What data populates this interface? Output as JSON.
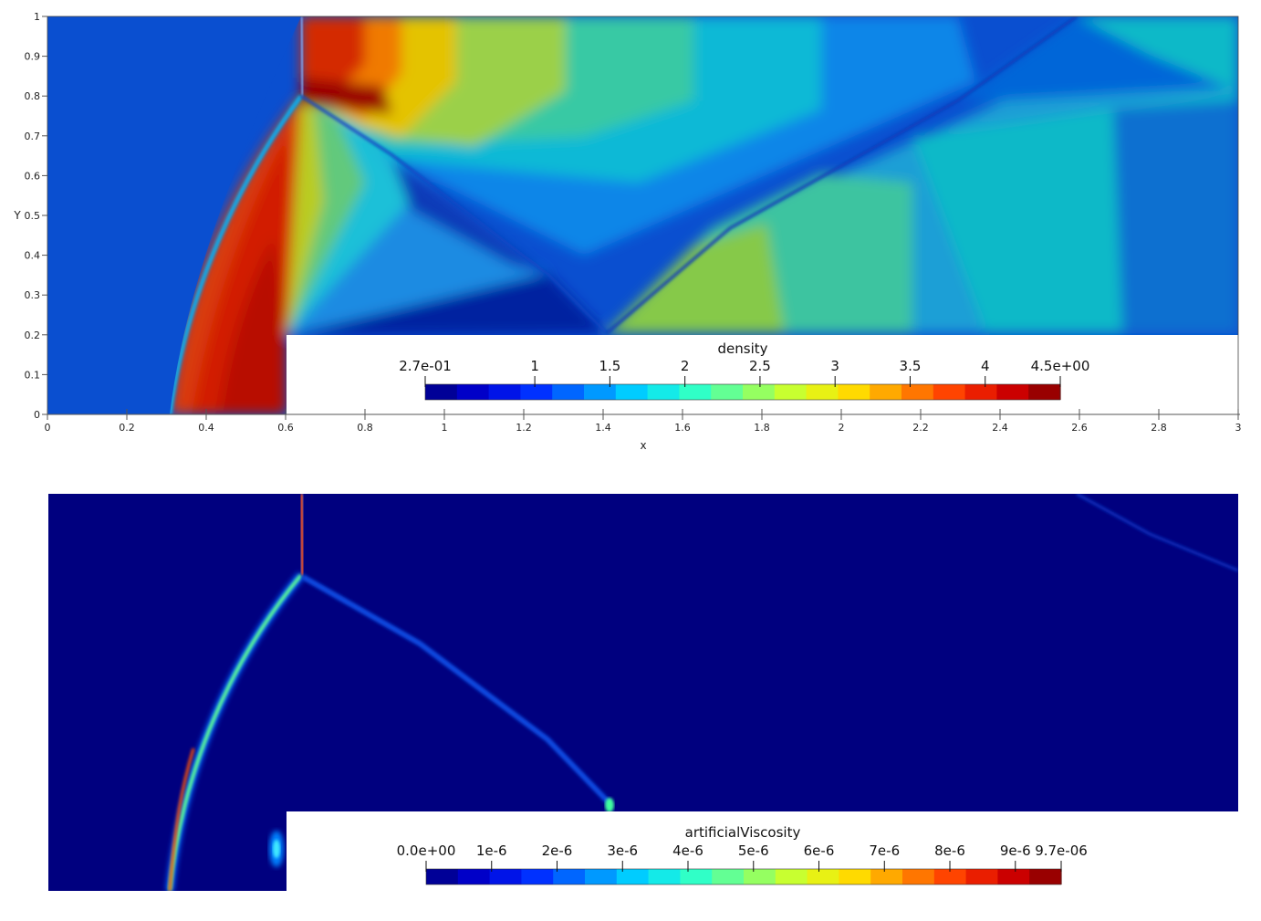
{
  "chart_data": [
    {
      "type": "heatmap",
      "field": "density",
      "xlabel": "x",
      "ylabel": "Y",
      "xlim": [
        0,
        3
      ],
      "ylim": [
        0,
        1
      ],
      "x_ticks": [
        "0",
        "0.2",
        "0.4",
        "0.6",
        "0.8",
        "1",
        "1.2",
        "1.4",
        "1.6",
        "1.8",
        "2",
        "2.2",
        "2.4",
        "2.6",
        "2.8",
        "3"
      ],
      "y_ticks": [
        "0",
        "0.1",
        "0.2",
        "0.3",
        "0.4",
        "0.5",
        "0.6",
        "0.7",
        "0.8",
        "0.9",
        "1"
      ],
      "step": {
        "x": 0.6,
        "y": 0.2
      },
      "colorbar": {
        "title": "density",
        "range": [
          0.27,
          4.5
        ],
        "labels": [
          "2.7e-01",
          "1",
          "1.5",
          "2",
          "2.5",
          "3",
          "3.5",
          "4",
          "4.5e+00"
        ],
        "label_values": [
          0.27,
          1,
          1.5,
          2,
          2.5,
          3,
          3.5,
          4,
          4.5
        ]
      },
      "features": {
        "bow_shock": {
          "x": [
            0.32,
            0.4,
            0.5,
            0.6,
            0.64
          ],
          "y": [
            0,
            0.3,
            0.5,
            0.72,
            1.0
          ]
        },
        "triple_point": {
          "x": 0.64,
          "y": 0.81
        },
        "reflected_shock": {
          "x": [
            0.64,
            1.2,
            1.41
          ],
          "y": [
            0.81,
            0.55,
            0.2
          ]
        }
      }
    },
    {
      "type": "heatmap",
      "field": "artificialViscosity",
      "xlim": [
        0,
        3
      ],
      "ylim": [
        0,
        1
      ],
      "step": {
        "x": 0.6,
        "y": 0.2
      },
      "colorbar": {
        "title": "artificialViscosity",
        "range": [
          0,
          9.7e-06
        ],
        "labels": [
          "0.0e+00",
          "1e-6",
          "2e-6",
          "3e-6",
          "4e-6",
          "5e-6",
          "6e-6",
          "7e-6",
          "8e-6",
          "9e-6",
          "9.7e-06"
        ],
        "label_values": [
          0,
          1e-06,
          2e-06,
          3e-06,
          4e-06,
          5e-06,
          6e-06,
          7e-06,
          8e-06,
          9e-06,
          9.7e-06
        ]
      }
    }
  ],
  "colors": {
    "jet": [
      "#00007f",
      "#0000d0",
      "#0028ff",
      "#0080ff",
      "#00d4ff",
      "#28ffd0",
      "#7cff7a",
      "#d0ff28",
      "#ffe200",
      "#ff9000",
      "#ff3b00",
      "#d40000",
      "#7f0000"
    ]
  }
}
